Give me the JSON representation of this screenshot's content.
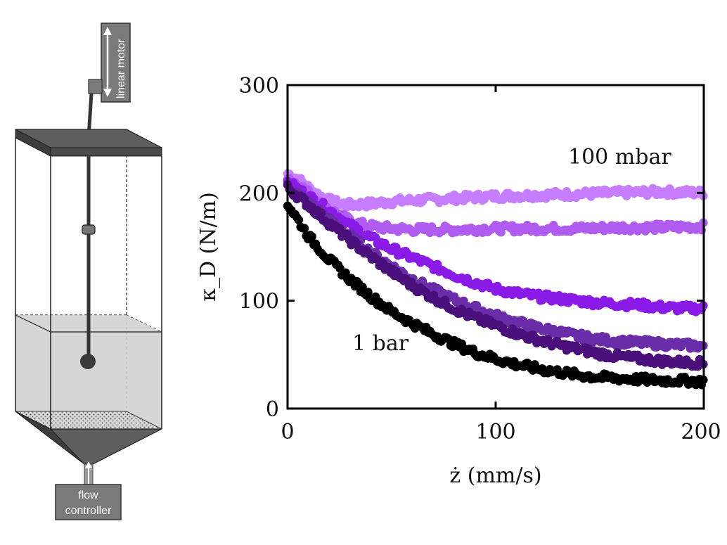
{
  "apparatus": {
    "motor_label": "linear motor",
    "controller_line1": "flow",
    "controller_line2": "controller"
  },
  "chart_data": {
    "type": "scatter",
    "xlabel": "ż (mm/s)",
    "ylabel": "κ_D (N/m)",
    "xlim": [
      0,
      200
    ],
    "ylim": [
      0,
      300
    ],
    "xticks": [
      0,
      100,
      200
    ],
    "yticks": [
      0,
      100,
      200,
      300
    ],
    "grid": false,
    "annotations": [
      {
        "text": "100 mbar",
        "x": 137,
        "y": 232
      },
      {
        "text": "1 bar",
        "x": 31,
        "y": 90
      }
    ],
    "series": [
      {
        "color": "#c77dff",
        "x": [
          0,
          5,
          10,
          15,
          20,
          25,
          30,
          40,
          50,
          60,
          80,
          100,
          120,
          140,
          160,
          180,
          200
        ],
        "y": [
          218,
          213,
          205,
          198,
          193,
          190,
          189,
          190,
          192,
          193,
          195,
          197,
          198,
          199,
          200,
          201,
          200
        ]
      },
      {
        "color": "#b05cf0",
        "x": [
          0,
          5,
          10,
          15,
          20,
          25,
          30,
          35,
          40,
          50,
          60,
          80,
          100,
          120,
          140,
          160,
          180,
          200
        ],
        "y": [
          215,
          208,
          200,
          192,
          185,
          179,
          174,
          171,
          169,
          167,
          166,
          166,
          167,
          167,
          167,
          168,
          168,
          169
        ]
      },
      {
        "color": "#8a1ae8",
        "x": [
          0,
          10,
          20,
          30,
          40,
          50,
          60,
          70,
          80,
          90,
          100,
          110,
          120,
          130,
          140,
          150,
          160,
          170,
          180,
          190,
          200
        ],
        "y": [
          210,
          197,
          184,
          170,
          158,
          148,
          140,
          132,
          124,
          117,
          111,
          107,
          104,
          102,
          100,
          98,
          97,
          96,
          94,
          93,
          93
        ]
      },
      {
        "color": "#6a2ca8",
        "x": [
          0,
          10,
          20,
          30,
          40,
          50,
          60,
          70,
          80,
          90,
          100,
          110,
          120,
          130,
          140,
          150,
          160,
          170,
          180,
          190,
          200
        ],
        "y": [
          207,
          191,
          175,
          160,
          145,
          132,
          120,
          110,
          101,
          93,
          86,
          80,
          75,
          71,
          67,
          64,
          62,
          61,
          60,
          59,
          58
        ]
      },
      {
        "color": "#4a0f7a",
        "x": [
          0,
          10,
          20,
          30,
          40,
          50,
          60,
          70,
          80,
          90,
          100,
          110,
          120,
          130,
          140,
          150,
          160,
          170,
          180,
          190,
          200
        ],
        "y": [
          205,
          189,
          172,
          156,
          141,
          127,
          114,
          103,
          93,
          84,
          77,
          70,
          64,
          59,
          55,
          51,
          48,
          46,
          44,
          43,
          42
        ]
      },
      {
        "color": "#000000",
        "x": [
          0,
          5,
          10,
          20,
          30,
          40,
          50,
          60,
          70,
          80,
          90,
          100,
          110,
          120,
          130,
          140,
          150,
          160,
          170,
          180,
          190,
          200
        ],
        "y": [
          190,
          175,
          160,
          138,
          120,
          104,
          90,
          79,
          69,
          60,
          52,
          46,
          41,
          37,
          34,
          31,
          29,
          28,
          27,
          26,
          26,
          25
        ]
      }
    ]
  }
}
